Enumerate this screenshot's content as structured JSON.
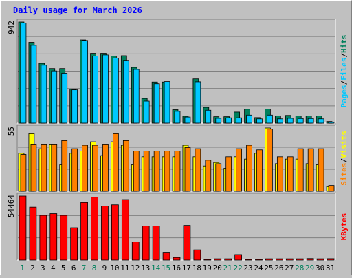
{
  "chart_data": {
    "type": "bar",
    "title": "Daily usage for March 2026",
    "categories": [
      "1",
      "2",
      "3",
      "4",
      "5",
      "6",
      "7",
      "8",
      "9",
      "10",
      "11",
      "12",
      "13",
      "14",
      "15",
      "16",
      "17",
      "18",
      "19",
      "20",
      "21",
      "22",
      "23",
      "24",
      "25",
      "26",
      "27",
      "28",
      "29",
      "30",
      "31"
    ],
    "weekend_days": [
      "1",
      "7",
      "8",
      "14",
      "15",
      "21",
      "22",
      "28",
      "29"
    ],
    "panels": [
      {
        "name": "hits-files-pages",
        "ymax_label": "942",
        "ylim": [
          0,
          942
        ],
        "series": [
          {
            "name": "Hits",
            "color": "#00805c",
            "values": [
              942,
              753,
              557,
              508,
              508,
              315,
              775,
              650,
              650,
              625,
              628,
              519,
              230,
              383,
              383,
              125,
              65,
              412,
              147,
              60,
              60,
              103,
              130,
              52,
              132,
              68,
              72,
              67,
              67,
              67,
              15
            ]
          },
          {
            "name": "Files",
            "color": "#00c8ff",
            "values": [
              932,
              725,
              540,
              486,
              465,
              310,
              770,
              625,
              635,
              605,
              585,
              500,
              205,
              367,
              387,
              110,
              57,
              385,
              120,
              45,
              50,
              50,
              75,
              40,
              75,
              40,
              45,
              43,
              43,
              40,
              10
            ]
          }
        ],
        "legend": [
          "Pages",
          "/",
          "Files",
          "/",
          "Hits"
        ]
      },
      {
        "name": "visits-sites",
        "ymax_label": "55",
        "ylim": [
          0,
          55
        ],
        "series": [
          {
            "name": "Visits",
            "color": "#ffff00",
            "values": [
              33,
              50,
              37,
              41,
              23,
              33,
              35,
              43,
              31,
              43,
              40,
              23,
              30,
              30,
              30,
              30,
              40,
              30,
              22,
              25,
              20,
              30,
              28,
              33,
              55,
              24,
              28,
              28,
              24,
              23,
              4
            ]
          },
          {
            "name": "Sites",
            "color": "#ff8000",
            "values": [
              32,
              41,
              41,
              41,
              44,
              37,
              40,
              40,
              41,
              50,
              44,
              35,
              35,
              35,
              35,
              35,
              38,
              37,
              27,
              24,
              30,
              37,
              40,
              36,
              54,
              30,
              30,
              37,
              37,
              37,
              5
            ]
          }
        ],
        "legend": [
          "Sites",
          "/",
          "Visits"
        ]
      },
      {
        "name": "kbytes",
        "ymax_label": "54464",
        "ylim": [
          0,
          54464
        ],
        "series": [
          {
            "name": "KBytes",
            "color": "#ff0000",
            "values": [
              54464,
              45000,
              38000,
              39500,
              38000,
              27500,
              49000,
              53500,
              46000,
              47000,
              51500,
              15500,
              29000,
              29000,
              6700,
              2200,
              29500,
              8700,
              500,
              1100,
              1100,
              4700,
              600,
              600,
              1100,
              1100,
              1100,
              1100,
              1300,
              1100,
              1200
            ]
          }
        ],
        "legend": [
          "KBytes"
        ]
      }
    ]
  },
  "colors": {
    "plot_bg": "#c0c0c0",
    "grid": "#808080",
    "weekend_label": "#00805c",
    "weekday_label": "#000000",
    "slash": "#000000"
  }
}
